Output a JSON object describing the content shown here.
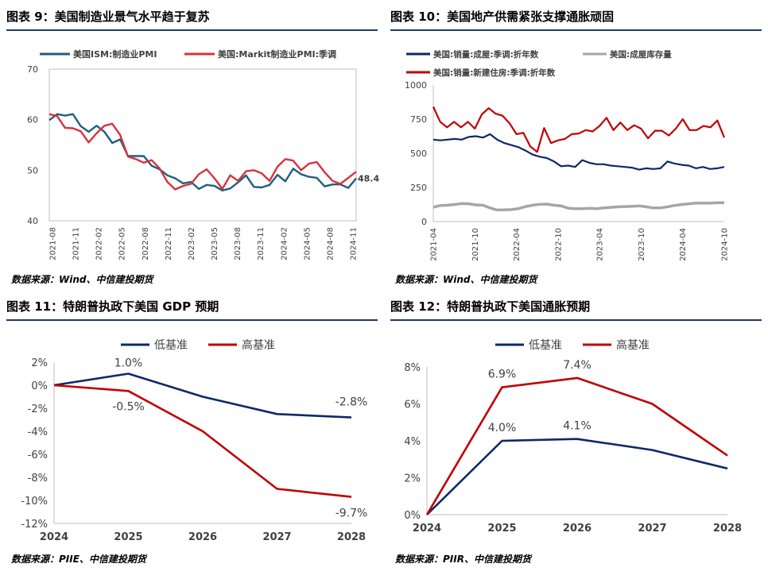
{
  "panels": [
    {
      "title": "图表 9：美国制造业景气水平趋于复苏",
      "source": "数据来源：Wind、中信建投期货"
    },
    {
      "title": "图表 10：美国地产供需紧张支撑通胀顽固",
      "source": "数据来源：Wind、中信建投期货"
    },
    {
      "title": "图表 11：特朗普执政下美国 GDP 预期",
      "source": "数据来源：PIIE、中信建投期货"
    },
    {
      "title": "图表 12：特朗普执政下美国通胀预期",
      "source": "数据来源：PIIR、中信建投期货"
    }
  ],
  "chart_data": [
    {
      "type": "line",
      "title": "图表 9：美国制造业景气水平趋于复苏",
      "xlabel": "",
      "ylabel": "",
      "ylim": [
        40,
        70
      ],
      "yticks": [
        40,
        50,
        60,
        70
      ],
      "xtick_labels": [
        "2021-08",
        "2021-11",
        "2022-02",
        "2022-05",
        "2022-08",
        "2022-11",
        "2023-02",
        "2023-05",
        "2023-08",
        "2023-11",
        "2024-02",
        "2024-05",
        "2024-08",
        "2024-11"
      ],
      "legend_position": "top",
      "grid": false,
      "annotation": "48.4",
      "series": [
        {
          "name": "美国ISM:制造业PMI",
          "color": "#1f5f7f",
          "values": [
            59.9,
            61.1,
            60.8,
            61.1,
            58.7,
            57.6,
            58.8,
            57.6,
            55.4,
            56.1,
            52.8,
            52.8,
            52.8,
            50.9,
            50.2,
            49.0,
            48.4,
            47.4,
            47.7,
            46.3,
            47.1,
            46.9,
            46.0,
            46.4,
            47.6,
            49.0,
            46.7,
            46.6,
            47.1,
            49.1,
            47.8,
            50.3,
            49.2,
            48.7,
            48.5,
            46.8,
            47.2,
            47.2,
            46.5,
            48.4
          ]
        },
        {
          "name": "美国:Markit制造业PMI:季调",
          "color": "#d8323c",
          "values": [
            61.1,
            60.7,
            58.4,
            58.3,
            57.7,
            55.5,
            57.3,
            58.8,
            59.2,
            57.0,
            52.7,
            52.2,
            51.5,
            52.0,
            50.4,
            47.7,
            46.2,
            46.9,
            47.3,
            49.2,
            50.2,
            48.4,
            46.3,
            49.0,
            47.9,
            49.8,
            50.0,
            49.4,
            47.9,
            50.7,
            52.2,
            51.9,
            50.0,
            51.3,
            51.6,
            49.6,
            47.9,
            47.3,
            48.5,
            49.7
          ]
        }
      ]
    },
    {
      "type": "line",
      "title": "图表 10：美国地产供需紧张支撑通胀顽固",
      "xlabel": "",
      "ylabel": "",
      "ylim": [
        0,
        1000
      ],
      "yticks": [
        0,
        250,
        500,
        750,
        1000
      ],
      "xtick_labels": [
        "2021-04",
        "2021-10",
        "2022-04",
        "2022-10",
        "2023-04",
        "2023-10",
        "2024-04",
        "2024-10"
      ],
      "legend_position": "top",
      "grid": false,
      "series": [
        {
          "name": "美国:销量:成屋:季调:折年数",
          "color": "#0d2a66",
          "values": [
            600,
            595,
            600,
            605,
            600,
            620,
            625,
            615,
            640,
            600,
            575,
            560,
            545,
            520,
            490,
            475,
            465,
            440,
            405,
            410,
            400,
            450,
            430,
            420,
            420,
            410,
            405,
            400,
            395,
            380,
            390,
            385,
            390,
            440,
            425,
            415,
            410,
            390,
            400,
            385,
            390,
            400
          ]
        },
        {
          "name": "美国:成屋库存量",
          "color": "#a6a6a6",
          "values": [
            105,
            118,
            120,
            125,
            132,
            130,
            122,
            120,
            100,
            85,
            86,
            88,
            95,
            110,
            120,
            127,
            128,
            120,
            115,
            98,
            94,
            95,
            97,
            95,
            100,
            104,
            108,
            110,
            112,
            115,
            108,
            100,
            100,
            108,
            118,
            125,
            130,
            135,
            135,
            135,
            138,
            138
          ]
        },
        {
          "name": "美国:销量:新建住房:季调:折年数",
          "color": "#c00000",
          "values": [
            840,
            730,
            690,
            730,
            690,
            730,
            680,
            785,
            830,
            790,
            775,
            720,
            640,
            650,
            550,
            510,
            685,
            575,
            595,
            605,
            640,
            645,
            670,
            660,
            700,
            760,
            670,
            725,
            670,
            705,
            680,
            610,
            665,
            665,
            630,
            680,
            750,
            670,
            670,
            700,
            690,
            740,
            615
          ]
        }
      ]
    },
    {
      "type": "line",
      "title": "图表 11：特朗普执政下美国 GDP 预期",
      "xlabel": "",
      "ylabel": "",
      "categories": [
        "2024",
        "2025",
        "2026",
        "2027",
        "2028"
      ],
      "ylim": [
        -12,
        2
      ],
      "yticks": [
        -12,
        -10,
        -8,
        -6,
        -4,
        -2,
        0,
        2
      ],
      "unit": "%",
      "legend_position": "top",
      "grid": false,
      "series": [
        {
          "name": "低基准",
          "color": "#0d2a66",
          "values": [
            0,
            1.0,
            -1.0,
            -2.5,
            -2.8
          ]
        },
        {
          "name": "高基准",
          "color": "#c00000",
          "values": [
            0,
            -0.5,
            -4.0,
            -9.0,
            -9.7
          ]
        }
      ],
      "data_labels": [
        {
          "series": 0,
          "index": 1,
          "text": "1.0%"
        },
        {
          "series": 0,
          "index": 4,
          "text": "-2.8%"
        },
        {
          "series": 1,
          "index": 1,
          "text": "-0.5%"
        },
        {
          "series": 1,
          "index": 4,
          "text": "-9.7%"
        }
      ]
    },
    {
      "type": "line",
      "title": "图表 12：特朗普执政下美国通胀预期",
      "xlabel": "",
      "ylabel": "",
      "categories": [
        "2024",
        "2025",
        "2026",
        "2027",
        "2028"
      ],
      "ylim": [
        0,
        8
      ],
      "yticks": [
        0,
        2,
        4,
        6,
        8
      ],
      "unit": "%",
      "legend_position": "top",
      "grid": false,
      "series": [
        {
          "name": "低基准",
          "color": "#0d2a66",
          "values": [
            0,
            4.0,
            4.1,
            3.5,
            2.5
          ]
        },
        {
          "name": "高基准",
          "color": "#c00000",
          "values": [
            0,
            6.9,
            7.4,
            6.0,
            3.2
          ]
        }
      ],
      "data_labels": [
        {
          "series": 0,
          "index": 1,
          "text": "4.0%"
        },
        {
          "series": 0,
          "index": 2,
          "text": "4.1%"
        },
        {
          "series": 1,
          "index": 1,
          "text": "6.9%"
        },
        {
          "series": 1,
          "index": 2,
          "text": "7.4%"
        }
      ]
    }
  ]
}
